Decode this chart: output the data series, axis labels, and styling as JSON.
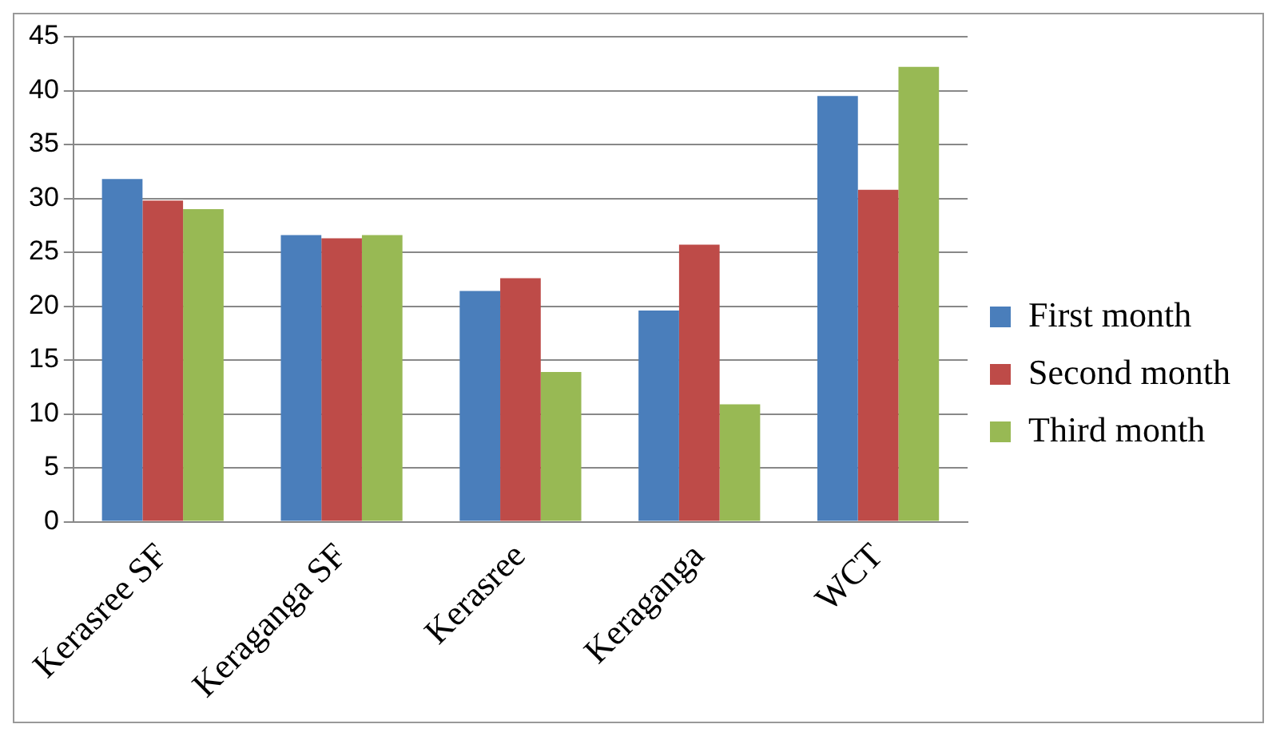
{
  "chart_data": {
    "type": "bar",
    "categories": [
      "Kerasree SF",
      "Keraganga SF",
      "Kerasree",
      "Keraganga",
      "WCT"
    ],
    "series": [
      {
        "name": "First month",
        "color": "#4a7ebb",
        "values": [
          31.8,
          26.6,
          21.4,
          19.6,
          39.5
        ]
      },
      {
        "name": "Second month",
        "color": "#be4b48",
        "values": [
          29.8,
          26.3,
          22.6,
          25.7,
          30.8
        ]
      },
      {
        "name": "Third month",
        "color": "#98b954",
        "values": [
          29.0,
          26.6,
          13.9,
          10.9,
          42.2
        ]
      }
    ],
    "ylim": [
      0,
      45
    ],
    "yticks": [
      0,
      5,
      10,
      15,
      20,
      25,
      30,
      35,
      40,
      45
    ],
    "grid": "y",
    "legend": "right"
  }
}
